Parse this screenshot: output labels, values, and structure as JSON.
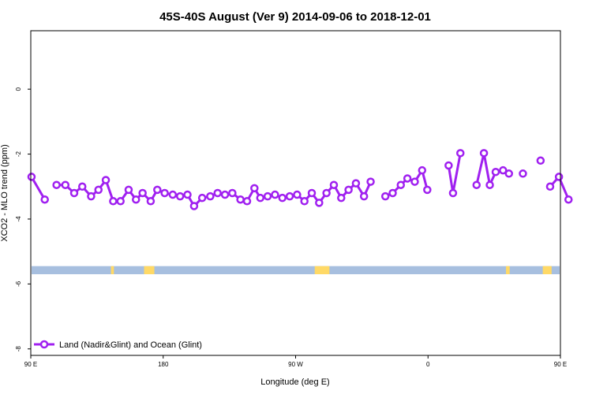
{
  "chart_data": {
    "type": "line",
    "title": "45S-40S August (Ver 9)   2014-09-06 to 2018-12-01",
    "xlabel": "Longitude (deg E)",
    "ylabel": "XCO2 - MLO trend (ppm)",
    "xlim": [
      90,
      450
    ],
    "ylim": [
      -8.2,
      1.8
    ],
    "x_ticks": [
      {
        "value": 90,
        "label": "90 E"
      },
      {
        "value": 180,
        "label": "180"
      },
      {
        "value": 270,
        "label": "90 W"
      },
      {
        "value": 360,
        "label": "0"
      },
      {
        "value": 450,
        "label": "90 E"
      },
      {
        "value": 540,
        "label": "180"
      }
    ],
    "y_ticks": [
      {
        "value": 0,
        "label": "0"
      },
      {
        "value": -2,
        "label": "-2"
      },
      {
        "value": -4,
        "label": "-4"
      },
      {
        "value": -6,
        "label": "-6"
      },
      {
        "value": -8,
        "label": "-8"
      }
    ],
    "grid": false,
    "legend_position": "bottom-left",
    "series": [
      {
        "name": "Land (Nadir&Glint) and Ocean (Glint)",
        "color": "#a020f0",
        "segments": [
          [
            [
              90.5,
              -2.7
            ],
            [
              99.5,
              -3.4
            ]
          ],
          [
            [
              107.5,
              -2.95
            ],
            [
              113.5,
              -2.95
            ],
            [
              119.5,
              -3.2
            ],
            [
              125,
              -3.0
            ],
            [
              131,
              -3.3
            ],
            [
              136,
              -3.1
            ],
            [
              141,
              -2.8
            ],
            [
              146,
              -3.45
            ],
            [
              151,
              -3.45
            ],
            [
              156.5,
              -3.1
            ],
            [
              161.5,
              -3.4
            ],
            [
              166,
              -3.2
            ],
            [
              171.5,
              -3.45
            ],
            [
              176,
              -3.1
            ],
            [
              181,
              -3.2
            ],
            [
              186.5,
              -3.25
            ],
            [
              191.5,
              -3.3
            ],
            [
              196.5,
              -3.25
            ],
            [
              201,
              -3.6
            ],
            [
              206.5,
              -3.35
            ],
            [
              212,
              -3.3
            ],
            [
              217,
              -3.2
            ],
            [
              222,
              -3.25
            ],
            [
              227,
              -3.2
            ],
            [
              232.5,
              -3.4
            ],
            [
              237,
              -3.45
            ],
            [
              242,
              -3.05
            ],
            [
              246,
              -3.35
            ],
            [
              251,
              -3.3
            ],
            [
              256,
              -3.25
            ],
            [
              261,
              -3.35
            ],
            [
              266,
              -3.3
            ],
            [
              271,
              -3.25
            ],
            [
              276,
              -3.45
            ],
            [
              281,
              -3.2
            ],
            [
              286,
              -3.5
            ],
            [
              291,
              -3.2
            ],
            [
              296,
              -2.95
            ],
            [
              301,
              -3.35
            ],
            [
              306,
              -3.1
            ],
            [
              311,
              -2.9
            ],
            [
              316.5,
              -3.3
            ],
            [
              321,
              -2.85
            ]
          ],
          [
            [
              331,
              -3.3
            ],
            [
              336,
              -3.2
            ],
            [
              341.5,
              -2.95
            ],
            [
              346,
              -2.75
            ],
            [
              351,
              -2.85
            ],
            [
              356,
              -2.5
            ],
            [
              359.5,
              -3.1
            ]
          ],
          [
            [
              374,
              -2.35
            ],
            [
              377,
              -3.2
            ],
            [
              382,
              -1.97
            ]
          ],
          [
            [
              393,
              -2.95
            ],
            [
              398,
              -1.97
            ],
            [
              402,
              -2.95
            ],
            [
              406,
              -2.55
            ],
            [
              411,
              -2.5
            ],
            [
              415,
              -2.6
            ]
          ],
          [
            [
              424.5,
              -2.6
            ]
          ],
          [
            [
              436.5,
              -2.2
            ]
          ],
          [
            [
              443,
              -3.0
            ],
            [
              449,
              -2.7
            ],
            [
              455.5,
              -3.4
            ]
          ]
        ]
      }
    ],
    "band": {
      "y_range": [
        -5.7,
        -5.45
      ],
      "ocean_color": "#a7bfdf",
      "land_color": "#ffd966",
      "land_spans": [
        [
          144.5,
          146.5
        ],
        [
          167,
          174
        ],
        [
          283,
          293
        ],
        [
          413,
          415.5
        ],
        [
          438,
          444
        ]
      ]
    }
  }
}
